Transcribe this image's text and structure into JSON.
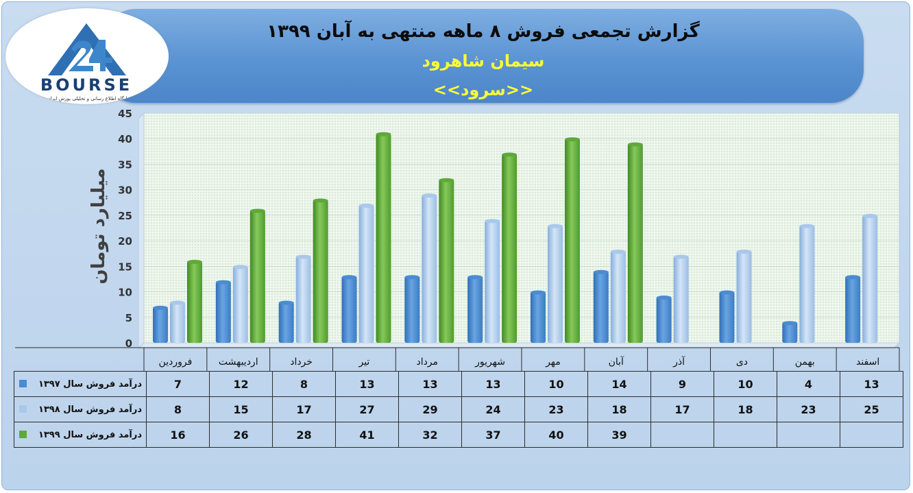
{
  "header": {
    "title": "گزارش تجمعی فروش ۸ ماهه منتهی به آبان ۱۳۹۹",
    "subtitle": "سیمان شاهرود",
    "ticker": "<<سرود>>"
  },
  "logo": {
    "brand": "BOURSE",
    "tagline": "پایگاه اطلاع رسانی و تحلیلی بورس ایران"
  },
  "colors": {
    "series_1397": "#4a8bd1",
    "series_1398": "#a9c8ea",
    "series_1399": "#5fa83a"
  },
  "chart_data": {
    "type": "bar",
    "title": "گزارش تجمعی فروش ۸ ماهه منتهی به آبان ۱۳۹۹",
    "ylabel": "میلیارد تومان",
    "xlabel": "",
    "ylim": [
      0,
      45
    ],
    "yticks": [
      0,
      5,
      10,
      15,
      20,
      25,
      30,
      35,
      40,
      45
    ],
    "grid": true,
    "categories": [
      "فروردین",
      "اردیبهشت",
      "خرداد",
      "تیر",
      "مرداد",
      "شهریور",
      "مهر",
      "آبان",
      "آذر",
      "دی",
      "بهمن",
      "اسفند"
    ],
    "series": [
      {
        "name": "درآمد فروش سال ۱۳۹۷",
        "values": [
          7,
          12,
          8,
          13,
          13,
          13,
          10,
          14,
          9,
          10,
          4,
          13
        ]
      },
      {
        "name": "درآمد فروش سال ۱۳۹۸",
        "values": [
          8,
          15,
          17,
          27,
          29,
          24,
          23,
          18,
          17,
          18,
          23,
          25
        ]
      },
      {
        "name": "درآمد فروش سال ۱۳۹۹",
        "values": [
          16,
          26,
          28,
          41,
          32,
          37,
          40,
          39,
          null,
          null,
          null,
          null
        ]
      }
    ]
  }
}
